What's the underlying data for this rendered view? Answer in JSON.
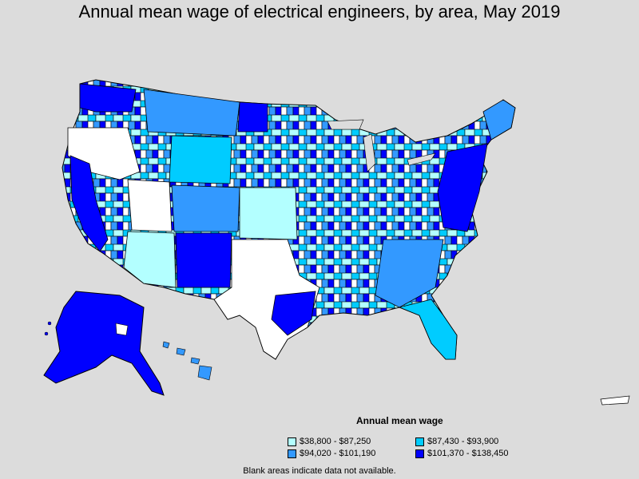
{
  "title": "Annual mean wage of electrical engineers, by area, May 2019",
  "legend": {
    "title": "Annual mean wage",
    "items": [
      {
        "label": "$38,800 - $87,250",
        "color": "#b3ffff"
      },
      {
        "label": "$87,430 - $93,900",
        "color": "#00ccff"
      },
      {
        "label": "$94,020 - $101,190",
        "color": "#3399ff"
      },
      {
        "label": "$101,370 - $138,450",
        "color": "#0000ff"
      }
    ]
  },
  "footnote": "Blank areas indicate data not available.",
  "colors": {
    "background": "#dcdcdc",
    "no_data": "#ffffff",
    "border": "#000000"
  }
}
